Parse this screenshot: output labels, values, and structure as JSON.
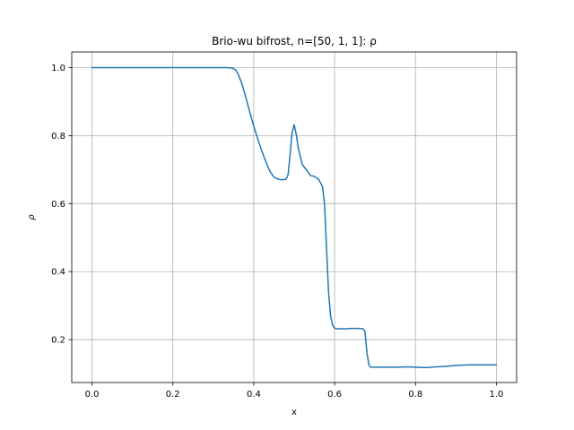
{
  "chart_data": {
    "type": "line",
    "title": "Brio-wu bifrost, n=[50, 1, 1]: ρ",
    "xlabel": "x",
    "ylabel": "ρ",
    "xlim": [
      -0.05,
      1.05
    ],
    "ylim": [
      0.074,
      1.046
    ],
    "xticks": [
      0.0,
      0.2,
      0.4,
      0.6,
      0.8,
      1.0
    ],
    "xtick_labels": [
      "0.0",
      "0.2",
      "0.4",
      "0.6",
      "0.8",
      "1.0"
    ],
    "yticks": [
      0.2,
      0.4,
      0.6,
      0.8,
      1.0
    ],
    "ytick_labels": [
      "0.2",
      "0.4",
      "0.6",
      "0.8",
      "1.0"
    ],
    "grid": true,
    "legend": false,
    "line_color": "#1f77b4",
    "grid_color": "#b0b0b0",
    "series": [
      {
        "x": [
          0.0,
          0.05,
          0.1,
          0.15,
          0.2,
          0.25,
          0.3,
          0.33,
          0.345,
          0.35,
          0.355,
          0.36,
          0.37,
          0.38,
          0.39,
          0.4,
          0.41,
          0.42,
          0.43,
          0.44,
          0.45,
          0.46,
          0.47,
          0.48,
          0.485,
          0.49,
          0.495,
          0.5,
          0.505,
          0.51,
          0.515,
          0.52,
          0.53,
          0.54,
          0.55,
          0.56,
          0.565,
          0.57,
          0.575,
          0.58,
          0.585,
          0.59,
          0.595,
          0.6,
          0.605,
          0.61,
          0.62,
          0.63,
          0.64,
          0.65,
          0.66,
          0.67,
          0.675,
          0.68,
          0.685,
          0.69,
          0.7,
          0.72,
          0.75,
          0.78,
          0.8,
          0.82,
          0.83,
          0.85,
          0.87,
          0.9,
          0.93,
          0.96,
          1.0
        ],
        "y": [
          1.0,
          1.0,
          1.0,
          1.0,
          1.0,
          1.0,
          1.0,
          1.0,
          0.999,
          0.997,
          0.993,
          0.985,
          0.955,
          0.915,
          0.87,
          0.828,
          0.79,
          0.755,
          0.723,
          0.695,
          0.678,
          0.672,
          0.67,
          0.672,
          0.685,
          0.745,
          0.81,
          0.832,
          0.805,
          0.765,
          0.74,
          0.715,
          0.7,
          0.683,
          0.68,
          0.672,
          0.662,
          0.65,
          0.6,
          0.47,
          0.34,
          0.27,
          0.242,
          0.234,
          0.232,
          0.232,
          0.232,
          0.232,
          0.233,
          0.233,
          0.233,
          0.232,
          0.225,
          0.16,
          0.125,
          0.119,
          0.119,
          0.119,
          0.119,
          0.12,
          0.119,
          0.118,
          0.118,
          0.12,
          0.121,
          0.124,
          0.126,
          0.126,
          0.126
        ]
      }
    ]
  }
}
